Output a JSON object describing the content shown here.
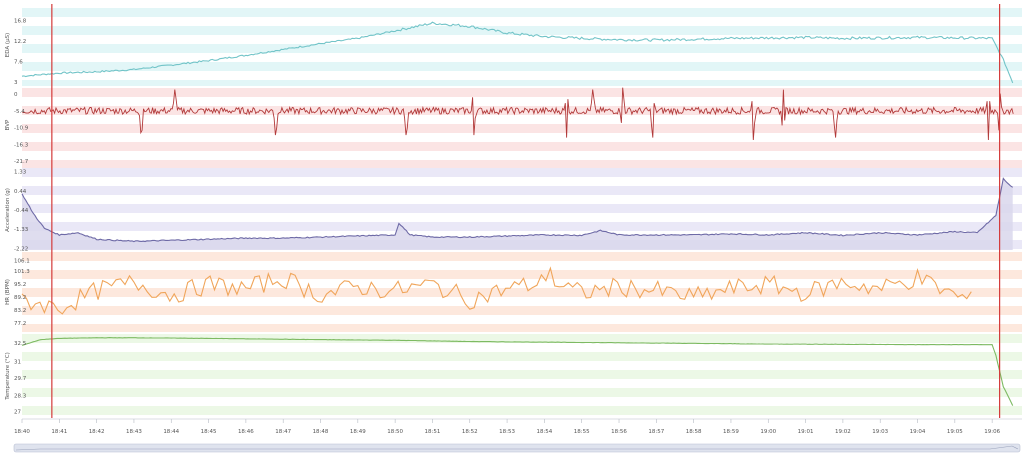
{
  "chart_data": {
    "type": "line",
    "time_axis": {
      "labels": [
        "18:40",
        "18:41",
        "18:42",
        "18:43",
        "18:44",
        "18:45",
        "18:46",
        "18:47",
        "18:48",
        "18:49",
        "18:50",
        "18:51",
        "18:52",
        "18:53",
        "18:54",
        "18:55",
        "18:56",
        "18:57",
        "18:58",
        "18:59",
        "19:00",
        "19:01",
        "19:02",
        "19:03",
        "19:04",
        "19:05",
        "19:06"
      ]
    },
    "markers_minutes": [
      0.8,
      26.2
    ],
    "panels": [
      {
        "id": "eda",
        "ylabel": "EDA (µS)",
        "ticks": [
          "16.8",
          "12.2",
          "7.6",
          "3"
        ],
        "tick_values": [
          16.8,
          12.2,
          7.6,
          3
        ],
        "ylim": [
          2.1,
          19.6
        ],
        "colors": {
          "line": "#72c4c8",
          "band": "#e2f6f7"
        },
        "x": [
          0,
          1,
          2,
          3,
          4,
          5,
          6,
          7,
          8,
          9,
          10,
          11,
          12,
          13,
          14,
          15,
          16,
          17,
          18,
          19,
          20,
          21,
          22,
          23,
          24,
          25,
          26,
          26.3,
          26.6
        ],
        "values": [
          4.3,
          5.0,
          5.3,
          5.8,
          6.8,
          7.8,
          9.0,
          10.3,
          11.6,
          12.8,
          14.5,
          16.2,
          15.5,
          14.0,
          13.2,
          12.8,
          12.5,
          12.4,
          12.6,
          12.8,
          12.9,
          13.0,
          12.8,
          12.9,
          13.0,
          12.9,
          12.8,
          8.0,
          1.9
        ]
      },
      {
        "id": "bvp",
        "ylabel": "BVP",
        "ticks": [
          "0",
          "-5.4",
          "-10.9",
          "-16.3",
          "-21.7"
        ],
        "tick_values": [
          0,
          -5.4,
          -10.9,
          -16.3,
          -21.7
        ],
        "ylim": [
          -24.0,
          2.0
        ],
        "baseline": -5.4,
        "colors": {
          "line": "#b23a3a",
          "band": "#fbe4e4"
        },
        "spikes_minutes": [
          3.2,
          4.1,
          6.8,
          10.3,
          12.1,
          14.6,
          15.3,
          16.1,
          16.9,
          19.6,
          20.4,
          21.8,
          25.9,
          26.2
        ]
      },
      {
        "id": "acc",
        "ylabel": "Acceleration (g)",
        "ticks": [
          "1.33",
          "0.44",
          "-0.44",
          "-1.33",
          "-2.22"
        ],
        "tick_values": [
          1.33,
          0.44,
          -0.44,
          -1.33,
          -2.22
        ],
        "ylim": [
          -2.3,
          1.5
        ],
        "colors": {
          "line": "#6e6aa6",
          "fill": "#d9d7ec",
          "band": "#eae8f7"
        },
        "x": [
          0,
          0.3,
          0.6,
          1.0,
          1.5,
          2,
          3,
          4,
          5,
          6,
          7,
          8,
          9,
          10,
          10.1,
          10.4,
          11,
          12,
          13,
          14,
          15,
          15.5,
          16,
          17,
          18,
          19,
          20,
          21,
          22,
          23,
          24,
          25,
          25.6,
          26.1,
          26.3,
          26.6
        ],
        "values": [
          0.3,
          -0.6,
          -1.3,
          -1.6,
          -1.5,
          -1.8,
          -1.9,
          -1.85,
          -1.8,
          -1.75,
          -1.75,
          -1.7,
          -1.65,
          -1.6,
          -1.05,
          -1.6,
          -1.7,
          -1.7,
          -1.65,
          -1.6,
          -1.62,
          -1.4,
          -1.6,
          -1.6,
          -1.6,
          -1.55,
          -1.6,
          -1.5,
          -1.62,
          -1.5,
          -1.6,
          -1.45,
          -1.5,
          -0.7,
          1.0,
          0.5
        ]
      },
      {
        "id": "hr",
        "ylabel": "HR (BPM)",
        "ticks": [
          "106.1",
          "101.3",
          "95.2",
          "89.2",
          "83.2",
          "77.2"
        ],
        "tick_values": [
          106.1,
          101.3,
          95.2,
          89.2,
          83.2,
          77.2
        ],
        "ylim": [
          73.0,
          110.0
        ],
        "colors": {
          "line": "#f0a55a",
          "band": "#fde8dd"
        },
        "x": [
          0,
          1,
          2,
          3,
          4,
          5,
          6,
          7,
          8,
          9,
          10,
          11,
          12,
          13,
          14,
          14.1,
          14.3,
          15,
          16,
          17,
          18,
          19,
          20,
          21,
          22,
          23,
          24,
          25,
          25.5
        ],
        "values": [
          88,
          84,
          92,
          96,
          90,
          95,
          93,
          98,
          90,
          94,
          92,
          95,
          88,
          93,
          96,
          106,
          95,
          91,
          94,
          92,
          89,
          93,
          95,
          91,
          96,
          93,
          98,
          90,
          87
        ]
      },
      {
        "id": "temp",
        "ylabel": "Temperature (°C)",
        "ticks": [
          "32.5",
          "31",
          "29.7",
          "28.3",
          "27"
        ],
        "tick_values": [
          32.5,
          31,
          29.7,
          28.3,
          27
        ],
        "ylim": [
          26.5,
          33.2
        ],
        "colors": {
          "line": "#7dba62",
          "band": "#ecf8e6"
        },
        "x": [
          0,
          0.5,
          1,
          2,
          3,
          5,
          8,
          10,
          12,
          14,
          16,
          18,
          20,
          22,
          24,
          25,
          26,
          26.1,
          26.3,
          26.6
        ],
        "values": [
          32.3,
          32.75,
          32.85,
          32.9,
          32.9,
          32.85,
          32.75,
          32.7,
          32.6,
          32.55,
          32.5,
          32.45,
          32.4,
          32.38,
          32.35,
          32.35,
          32.35,
          31.5,
          29.0,
          27.2
        ]
      }
    ]
  }
}
